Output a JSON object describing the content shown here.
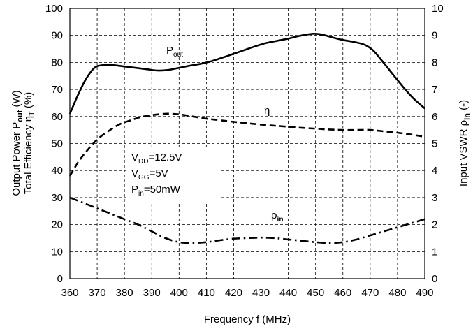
{
  "chart_data": {
    "type": "line",
    "x_axis": {
      "label_parts": [
        "Frequency f (MHz)"
      ],
      "range": [
        360,
        490
      ],
      "ticks": [
        360,
        370,
        380,
        390,
        400,
        410,
        420,
        430,
        440,
        450,
        460,
        470,
        480,
        490
      ]
    },
    "y_left": {
      "range": [
        0,
        100
      ],
      "ticks": [
        0,
        10,
        20,
        30,
        40,
        50,
        60,
        70,
        80,
        90,
        100
      ],
      "label_line1": {
        "a": "Output Power P",
        "sub": "out",
        "b": " (W)"
      },
      "label_line2": {
        "a": "Total Efficiency η",
        "sub": "T",
        "b": " (%)"
      }
    },
    "y_right": {
      "range": [
        0,
        10
      ],
      "ticks": [
        0,
        1,
        2,
        3,
        4,
        5,
        6,
        7,
        8,
        9,
        10
      ],
      "label": {
        "a": "Input VSWR ρ",
        "sub": "in",
        "b": " (-)"
      }
    },
    "grid": true,
    "series": [
      {
        "name": "Pout",
        "name_main": "P",
        "name_sub": "out",
        "axis": "left",
        "style": "solid",
        "points": [
          [
            360,
            61
          ],
          [
            363,
            68
          ],
          [
            366,
            74
          ],
          [
            369,
            78
          ],
          [
            372,
            79
          ],
          [
            376,
            79
          ],
          [
            380,
            78.5
          ],
          [
            384,
            78
          ],
          [
            388,
            77.5
          ],
          [
            392,
            77
          ],
          [
            396,
            77.2
          ],
          [
            400,
            78
          ],
          [
            404,
            78.8
          ],
          [
            408,
            79.5
          ],
          [
            412,
            80.5
          ],
          [
            416,
            81.8
          ],
          [
            420,
            83.2
          ],
          [
            424,
            84.6
          ],
          [
            428,
            86
          ],
          [
            432,
            87.2
          ],
          [
            436,
            88
          ],
          [
            440,
            88.8
          ],
          [
            444,
            89.8
          ],
          [
            448,
            90.5
          ],
          [
            450,
            90.6
          ],
          [
            452,
            90.4
          ],
          [
            456,
            89.3
          ],
          [
            460,
            88.3
          ],
          [
            464,
            87.6
          ],
          [
            468,
            86.5
          ],
          [
            471,
            84.5
          ],
          [
            474,
            81
          ],
          [
            478,
            76
          ],
          [
            482,
            71
          ],
          [
            486,
            66.5
          ],
          [
            490,
            63
          ]
        ]
      },
      {
        "name": "ηT",
        "name_main": "η",
        "name_sub": "T",
        "axis": "left",
        "style": "dashed",
        "points": [
          [
            360,
            38
          ],
          [
            363,
            43
          ],
          [
            366,
            47
          ],
          [
            370,
            51.5
          ],
          [
            374,
            54.5
          ],
          [
            378,
            57
          ],
          [
            382,
            58.5
          ],
          [
            386,
            59.8
          ],
          [
            390,
            60.5
          ],
          [
            395,
            61
          ],
          [
            400,
            60.8
          ],
          [
            405,
            60
          ],
          [
            410,
            59.2
          ],
          [
            415,
            58.6
          ],
          [
            420,
            58
          ],
          [
            425,
            57.5
          ],
          [
            430,
            57
          ],
          [
            435,
            56.6
          ],
          [
            440,
            56.2
          ],
          [
            445,
            55.8
          ],
          [
            450,
            55.5
          ],
          [
            455,
            55.2
          ],
          [
            460,
            55
          ],
          [
            465,
            55
          ],
          [
            470,
            55
          ],
          [
            475,
            54.5
          ],
          [
            480,
            54
          ],
          [
            485,
            53.3
          ],
          [
            490,
            52.5
          ]
        ]
      },
      {
        "name": "ρin",
        "name_main": "ρ",
        "name_sub": "in",
        "axis": "right",
        "style": "dashdot",
        "points": [
          [
            360,
            3
          ],
          [
            365,
            2.8
          ],
          [
            370,
            2.6
          ],
          [
            375,
            2.4
          ],
          [
            380,
            2.2
          ],
          [
            385,
            2.0
          ],
          [
            390,
            1.75
          ],
          [
            395,
            1.5
          ],
          [
            400,
            1.35
          ],
          [
            405,
            1.32
          ],
          [
            410,
            1.35
          ],
          [
            415,
            1.42
          ],
          [
            420,
            1.48
          ],
          [
            425,
            1.5
          ],
          [
            430,
            1.52
          ],
          [
            435,
            1.5
          ],
          [
            440,
            1.45
          ],
          [
            445,
            1.4
          ],
          [
            450,
            1.35
          ],
          [
            455,
            1.32
          ],
          [
            460,
            1.35
          ],
          [
            465,
            1.45
          ],
          [
            470,
            1.6
          ],
          [
            475,
            1.75
          ],
          [
            480,
            1.9
          ],
          [
            485,
            2.05
          ],
          [
            490,
            2.2
          ]
        ]
      }
    ],
    "annotation": [
      {
        "main": "V",
        "sub": "DD",
        "value": "=12.5V"
      },
      {
        "main": "V",
        "sub": "GG",
        "value": "=5V"
      },
      {
        "main": "P",
        "sub": "in",
        "value": "=50mW"
      }
    ]
  }
}
